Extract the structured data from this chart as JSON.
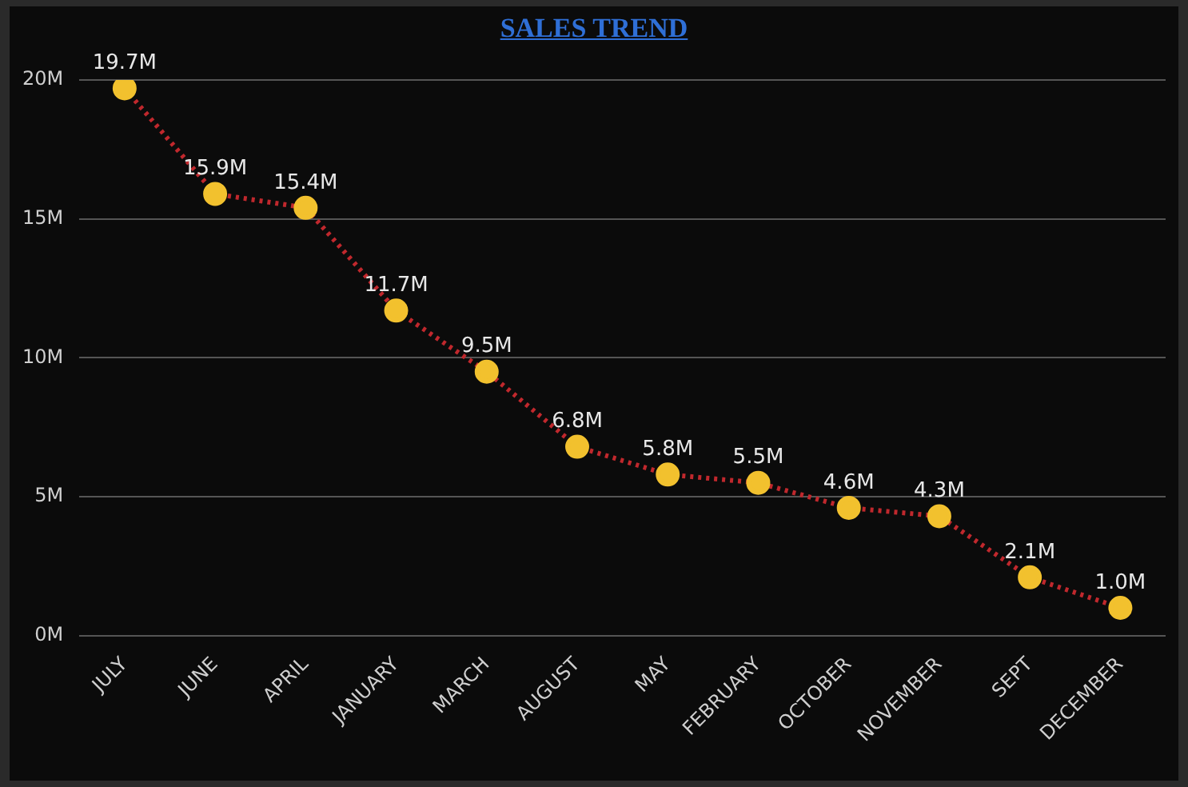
{
  "chart_data": {
    "type": "line",
    "title": "SALES TREND",
    "categories": [
      "JULY",
      "JUNE",
      "APRIL",
      "JANUARY",
      "MARCH",
      "AUGUST",
      "MAY",
      "FEBRUARY",
      "OCTOBER",
      "NOVEMBER",
      "SEPT",
      "DECEMBER"
    ],
    "series": [
      {
        "color": "#c0282d",
        "values": [
          19.7,
          15.9,
          15.4,
          11.7,
          9.5,
          6.8,
          5.8,
          5.5,
          4.6,
          4.3,
          2.1,
          1.0
        ],
        "value_labels": [
          "19.7M",
          "15.9M",
          "15.4M",
          "11.7M",
          "9.5M",
          "6.8M",
          "5.8M",
          "5.5M",
          "4.6M",
          "4.3M",
          "2.1M",
          "1.0M"
        ],
        "colors": [
          "#f2c12e",
          "#f2c12e",
          "#f2c12e",
          "#f2c12e",
          "#f2c12e",
          "#f2c12e",
          "#f2c12e",
          "#f2c12e",
          "#f2c12e",
          "#f2c12e",
          "#f2c12e",
          "#f2c12e"
        ]
      }
    ],
    "ylim": [
      0,
      20
    ],
    "yticks": [
      {
        "value": 0,
        "label": "0M"
      },
      {
        "value": 5,
        "label": "5M"
      },
      {
        "value": 10,
        "label": "10M"
      },
      {
        "value": 15,
        "label": "15M"
      },
      {
        "value": 20,
        "label": "20M"
      }
    ],
    "grid": "y",
    "legend": false,
    "marker": "circle",
    "line_style": "dotted"
  }
}
